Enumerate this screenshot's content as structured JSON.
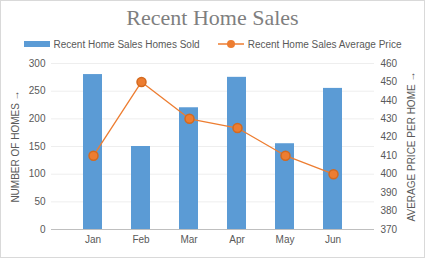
{
  "chart_data": {
    "type": "bar",
    "title": "Recent Home Sales",
    "categories": [
      "Jan",
      "Feb",
      "Mar",
      "Apr",
      "May",
      "Jun"
    ],
    "series": [
      {
        "name": "Recent Home Sales Homes Sold",
        "type": "bar",
        "color": "#5b9bd5",
        "values": [
          280,
          150,
          220,
          275,
          155,
          255
        ]
      },
      {
        "name": "Recent Home Sales Average Price",
        "type": "line",
        "axis": "y2",
        "color": "#ed7d31",
        "marker": "circle",
        "values": [
          410,
          450,
          430,
          425,
          410,
          400
        ]
      }
    ],
    "ylabel": "NUMBER OF HOMES",
    "y2label": "AVERAGE PRICE PER HOME",
    "ylim": [
      0,
      300
    ],
    "yticks": [
      0,
      50,
      100,
      150,
      200,
      250,
      300
    ],
    "y2lim": [
      370,
      460
    ],
    "y2ticks": [
      370,
      380,
      390,
      400,
      410,
      420,
      430,
      440,
      450,
      460
    ],
    "grid": true,
    "legend": "top"
  }
}
